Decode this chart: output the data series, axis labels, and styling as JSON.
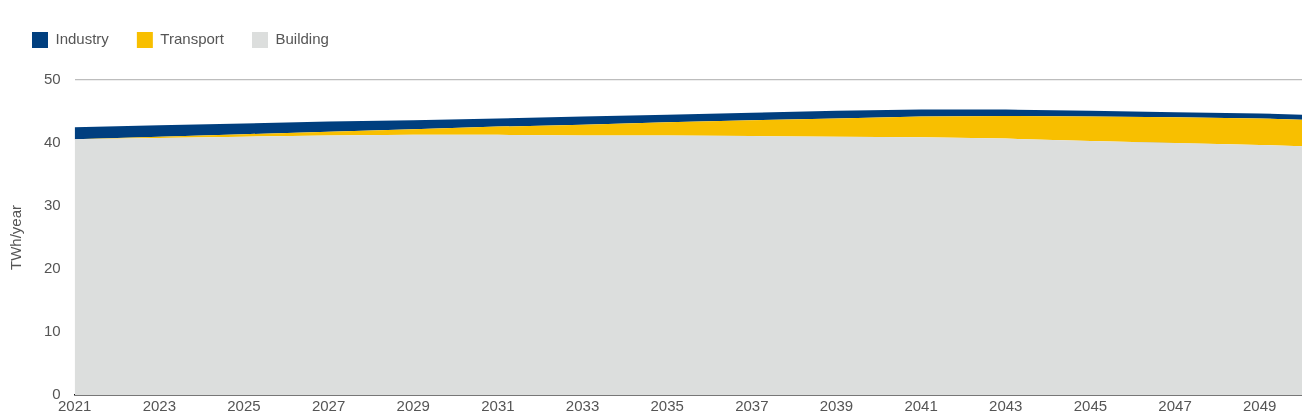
{
  "chart_data": {
    "type": "area",
    "stacked": true,
    "ylabel": "TWh/year",
    "x": [
      2021,
      2023,
      2025,
      2027,
      2029,
      2031,
      2033,
      2035,
      2037,
      2039,
      2041,
      2043,
      2045,
      2047,
      2049,
      2050
    ],
    "series": [
      {
        "name": "Building",
        "color": "#dcdedd",
        "values": [
          40.6,
          40.8,
          41.0,
          41.2,
          41.3,
          41.3,
          41.2,
          41.2,
          41.1,
          41.0,
          40.9,
          40.7,
          40.3,
          40.0,
          39.7,
          39.5
        ]
      },
      {
        "name": "Transport",
        "color": "#f8bf00",
        "values": [
          0.0,
          0.2,
          0.4,
          0.6,
          0.9,
          1.3,
          1.7,
          2.1,
          2.5,
          2.9,
          3.3,
          3.6,
          3.9,
          4.1,
          4.2,
          4.2
        ]
      },
      {
        "name": "Industry",
        "color": "#003f7f",
        "values": [
          1.9,
          1.8,
          1.7,
          1.6,
          1.4,
          1.3,
          1.3,
          1.2,
          1.2,
          1.2,
          1.1,
          1.0,
          0.9,
          0.8,
          0.8,
          0.8
        ]
      }
    ],
    "xlim": [
      2021,
      2050
    ],
    "xticks": [
      2021,
      2023,
      2025,
      2027,
      2029,
      2031,
      2033,
      2035,
      2037,
      2039,
      2041,
      2043,
      2045,
      2047,
      2049
    ],
    "ylim": [
      0,
      50
    ],
    "yticks": [
      0,
      10,
      20,
      30,
      40,
      50
    ],
    "grid": "y",
    "legend": "top left"
  }
}
